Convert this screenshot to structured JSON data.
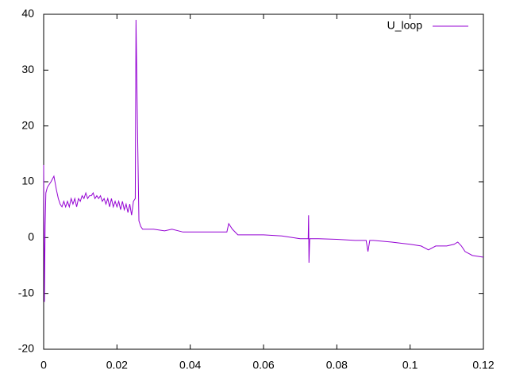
{
  "chart_data": {
    "type": "line",
    "x": [
      0,
      0.0002,
      0.0004,
      0.0006,
      0.001,
      0.0015,
      0.002,
      0.0028,
      0.0035,
      0.004,
      0.0045,
      0.005,
      0.0055,
      0.006,
      0.0065,
      0.007,
      0.0075,
      0.008,
      0.0085,
      0.009,
      0.0095,
      0.01,
      0.0105,
      0.011,
      0.0115,
      0.012,
      0.0125,
      0.013,
      0.0135,
      0.014,
      0.0145,
      0.015,
      0.0155,
      0.016,
      0.0165,
      0.017,
      0.0175,
      0.018,
      0.0185,
      0.019,
      0.0195,
      0.02,
      0.0205,
      0.021,
      0.0215,
      0.022,
      0.0225,
      0.023,
      0.0235,
      0.024,
      0.0245,
      0.025,
      0.0252,
      0.0256,
      0.026,
      0.0265,
      0.027,
      0.03,
      0.033,
      0.035,
      0.038,
      0.04,
      0.045,
      0.05,
      0.0505,
      0.0515,
      0.053,
      0.055,
      0.06,
      0.065,
      0.07,
      0.0722,
      0.0723,
      0.0724,
      0.0726,
      0.075,
      0.08,
      0.085,
      0.088,
      0.0885,
      0.089,
      0.09,
      0.095,
      0.1,
      0.103,
      0.105,
      0.107,
      0.11,
      0.112,
      0.113,
      0.114,
      0.115,
      0.117,
      0.12
    ],
    "series": [
      {
        "name": "U_loop",
        "color": "#9400d3",
        "values": [
          13,
          -11.5,
          2,
          8,
          9,
          9.5,
          10,
          11,
          8.5,
          7,
          6,
          5.5,
          6.5,
          5.5,
          6.5,
          5.5,
          7,
          6,
          7,
          5.5,
          7,
          6.5,
          7.5,
          7,
          8,
          7,
          7.5,
          7.5,
          8,
          7,
          7.5,
          7,
          7.5,
          6.5,
          7,
          6,
          7,
          5.5,
          7,
          5.5,
          6.5,
          5.5,
          6.5,
          5,
          6.5,
          5,
          6,
          4.5,
          6,
          4,
          6.5,
          7,
          39,
          20,
          3,
          2,
          1.5,
          1.5,
          1.2,
          1.5,
          1,
          1,
          1,
          1,
          2.5,
          1.5,
          0.5,
          0.5,
          0.5,
          0.3,
          -0.2,
          -0.2,
          4,
          -4.5,
          -0.2,
          -0.2,
          -0.3,
          -0.5,
          -0.5,
          -2.5,
          -0.5,
          -0.5,
          -0.8,
          -1.2,
          -1.5,
          -2.2,
          -1.5,
          -1.5,
          -1.2,
          -0.8,
          -1.5,
          -2.5,
          -3.2,
          -3.5
        ]
      }
    ],
    "xlim": [
      0,
      0.12
    ],
    "xticks": [
      0,
      0.02,
      0.04,
      0.06,
      0.08,
      0.1,
      0.12
    ],
    "ylim": [
      -20,
      40
    ],
    "yticks": [
      -20,
      -10,
      0,
      10,
      20,
      30,
      40
    ],
    "legend": "top-right"
  }
}
